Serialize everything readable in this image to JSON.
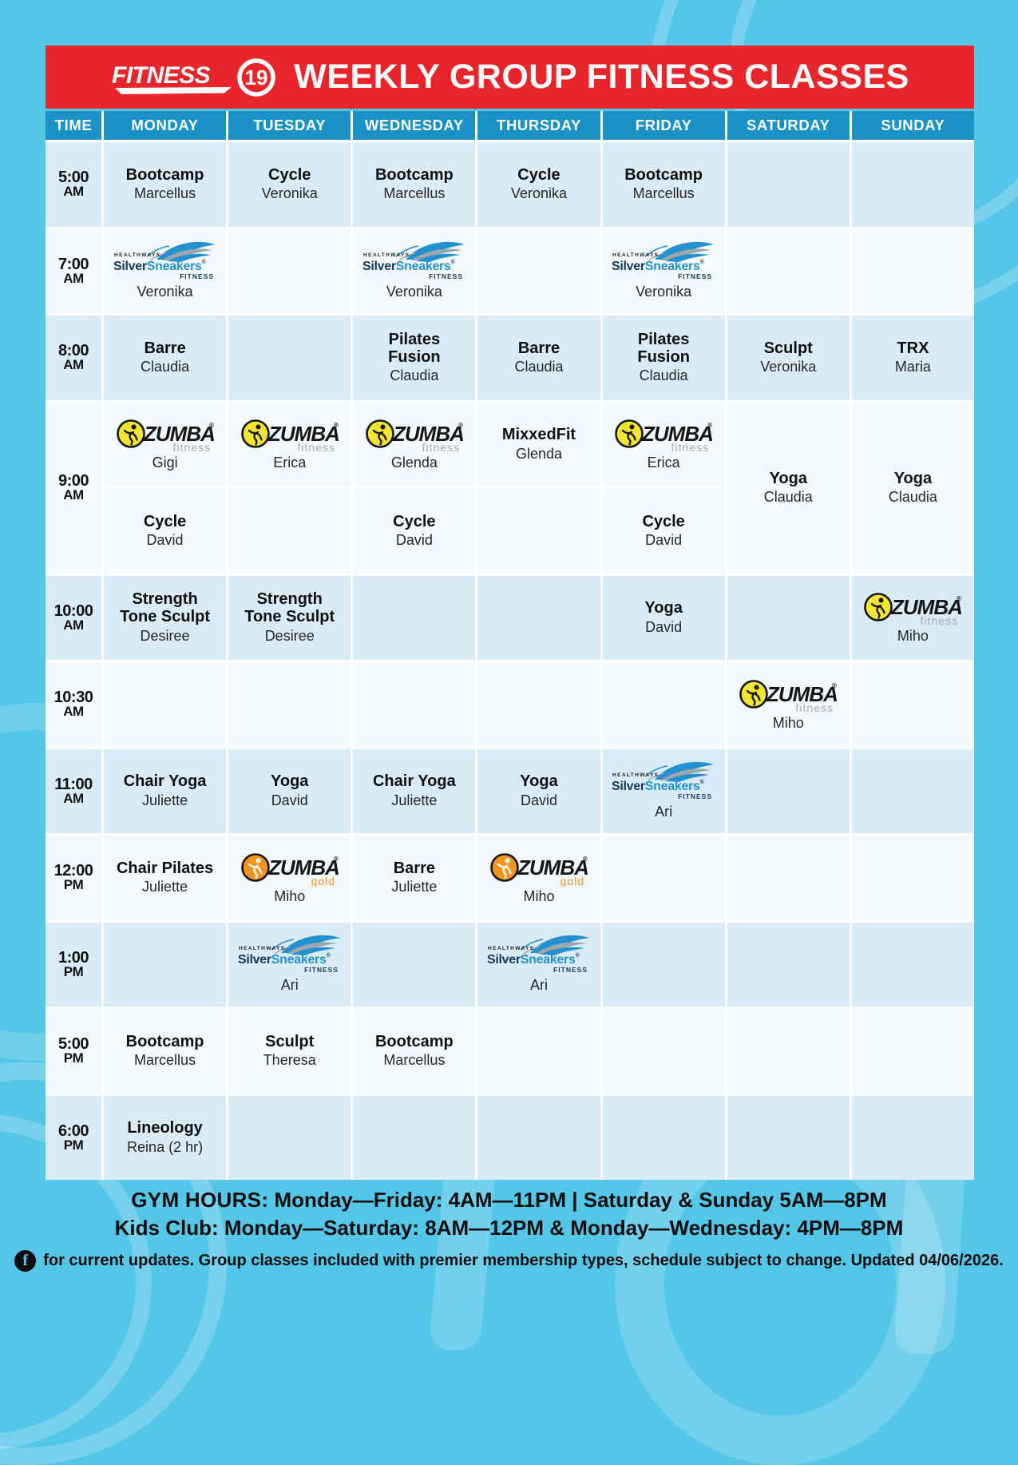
{
  "colors": {
    "page_bg": "#54c6e8",
    "banner_red": "#e8252b",
    "header_blue": "#1b92c6",
    "row_shade": "#d9ebf7",
    "row_light": "#f3f9fd",
    "text_black": "#101010",
    "zumba_yellow": "#f2e430",
    "zumba_gold_orange": "#f6921e",
    "zumba_fitness_gray": "#a7a9ac",
    "silversneakers_navy": "#13395c",
    "silversneakers_blue": "#2391d0",
    "watermark": "rgba(255,255,255,0.2)"
  },
  "header": {
    "brand": "FITNESS",
    "brand_number": "19",
    "title": "WEEKLY GROUP FITNESS CLASSES"
  },
  "columns": [
    "TIME",
    "MONDAY",
    "TUESDAY",
    "WEDNESDAY",
    "THURSDAY",
    "FRIDAY",
    "SATURDAY",
    "SUNDAY"
  ],
  "logos": {
    "zumba_word": "ZUMBA",
    "zumba_reg": "®",
    "zumba_fitness_sub": "fitness",
    "zumba_gold_sub": "gold",
    "ss_healthways": "HEALTHWAYS",
    "ss_silver": "Silver",
    "ss_sneakers": "Sneakers",
    "ss_reg": "®",
    "ss_fitness": "FITNESS"
  },
  "schedule": {
    "rows": [
      {
        "time": "5:00",
        "meridiem": "AM",
        "shade": true,
        "cells": [
          {
            "type": "class",
            "title": "Bootcamp",
            "instructor": "Marcellus"
          },
          {
            "type": "class",
            "title": "Cycle",
            "instructor": "Veronika"
          },
          {
            "type": "class",
            "title": "Bootcamp",
            "instructor": "Marcellus"
          },
          {
            "type": "class",
            "title": "Cycle",
            "instructor": "Veronika"
          },
          {
            "type": "class",
            "title": "Bootcamp",
            "instructor": "Marcellus"
          },
          {
            "type": "empty"
          },
          {
            "type": "empty"
          }
        ]
      },
      {
        "time": "7:00",
        "meridiem": "AM",
        "shade": false,
        "cells": [
          {
            "type": "silversneakers",
            "instructor": "Veronika"
          },
          {
            "type": "empty"
          },
          {
            "type": "silversneakers",
            "instructor": "Veronika"
          },
          {
            "type": "empty"
          },
          {
            "type": "silversneakers",
            "instructor": "Veronika"
          },
          {
            "type": "empty"
          },
          {
            "type": "empty"
          }
        ]
      },
      {
        "time": "8:00",
        "meridiem": "AM",
        "shade": true,
        "cells": [
          {
            "type": "class",
            "title": "Barre",
            "instructor": "Claudia"
          },
          {
            "type": "empty"
          },
          {
            "type": "class",
            "title": "Pilates\nFusion",
            "instructor": "Claudia"
          },
          {
            "type": "class",
            "title": "Barre",
            "instructor": "Claudia"
          },
          {
            "type": "class",
            "title": "Pilates\nFusion",
            "instructor": "Claudia"
          },
          {
            "type": "class",
            "title": "Sculpt",
            "instructor": "Veronika"
          },
          {
            "type": "class",
            "title": "TRX",
            "instructor": "Maria"
          }
        ]
      },
      {
        "time": "9:00",
        "meridiem": "AM",
        "shade": false,
        "subrows": [
          [
            {
              "type": "zumba",
              "variant": "fitness",
              "instructor": "Gigi"
            },
            {
              "type": "zumba",
              "variant": "fitness",
              "instructor": "Erica"
            },
            {
              "type": "zumba",
              "variant": "fitness",
              "instructor": "Glenda"
            },
            {
              "type": "class",
              "title": "MixxedFit",
              "instructor": "Glenda"
            },
            {
              "type": "zumba",
              "variant": "fitness",
              "instructor": "Erica"
            },
            {
              "type": "class",
              "title": "Yoga",
              "instructor": "Claudia",
              "rowspan": 2
            },
            {
              "type": "class",
              "title": "Yoga",
              "instructor": "Claudia",
              "rowspan": 2
            }
          ],
          [
            {
              "type": "class",
              "title": "Cycle",
              "instructor": "David"
            },
            {
              "type": "empty"
            },
            {
              "type": "class",
              "title": "Cycle",
              "instructor": "David"
            },
            {
              "type": "empty"
            },
            {
              "type": "class",
              "title": "Cycle",
              "instructor": "David"
            },
            {
              "type": "skip"
            },
            {
              "type": "skip"
            }
          ]
        ]
      },
      {
        "time": "10:00",
        "meridiem": "AM",
        "shade": true,
        "cells": [
          {
            "type": "class",
            "title": "Strength\nTone Sculpt",
            "instructor": "Desiree"
          },
          {
            "type": "class",
            "title": "Strength\nTone Sculpt",
            "instructor": "Desiree"
          },
          {
            "type": "empty"
          },
          {
            "type": "empty"
          },
          {
            "type": "class",
            "title": "Yoga",
            "instructor": "David"
          },
          {
            "type": "empty"
          },
          {
            "type": "zumba",
            "variant": "fitness",
            "instructor": "Miho"
          }
        ]
      },
      {
        "time": "10:30",
        "meridiem": "AM",
        "shade": false,
        "cells": [
          {
            "type": "empty"
          },
          {
            "type": "empty"
          },
          {
            "type": "empty"
          },
          {
            "type": "empty"
          },
          {
            "type": "empty"
          },
          {
            "type": "zumba",
            "variant": "fitness",
            "instructor": "Miho"
          },
          {
            "type": "empty"
          }
        ]
      },
      {
        "time": "11:00",
        "meridiem": "AM",
        "shade": true,
        "cells": [
          {
            "type": "class",
            "title": "Chair Yoga",
            "instructor": "Juliette"
          },
          {
            "type": "class",
            "title": "Yoga",
            "instructor": "David"
          },
          {
            "type": "class",
            "title": "Chair Yoga",
            "instructor": "Juliette"
          },
          {
            "type": "class",
            "title": "Yoga",
            "instructor": "David"
          },
          {
            "type": "silversneakers",
            "instructor": "Ari"
          },
          {
            "type": "empty"
          },
          {
            "type": "empty"
          }
        ]
      },
      {
        "time": "12:00",
        "meridiem": "PM",
        "shade": false,
        "cells": [
          {
            "type": "class",
            "title": "Chair Pilates",
            "instructor": "Juliette"
          },
          {
            "type": "zumba",
            "variant": "gold",
            "instructor": "Miho"
          },
          {
            "type": "class",
            "title": "Barre",
            "instructor": "Juliette"
          },
          {
            "type": "zumba",
            "variant": "gold",
            "instructor": "Miho"
          },
          {
            "type": "empty"
          },
          {
            "type": "empty"
          },
          {
            "type": "empty"
          }
        ]
      },
      {
        "time": "1:00",
        "meridiem": "PM",
        "shade": true,
        "cells": [
          {
            "type": "empty"
          },
          {
            "type": "silversneakers",
            "instructor": "Ari"
          },
          {
            "type": "empty"
          },
          {
            "type": "silversneakers",
            "instructor": "Ari"
          },
          {
            "type": "empty"
          },
          {
            "type": "empty"
          },
          {
            "type": "empty"
          }
        ]
      },
      {
        "time": "5:00",
        "meridiem": "PM",
        "shade": false,
        "cells": [
          {
            "type": "class",
            "title": "Bootcamp",
            "instructor": "Marcellus"
          },
          {
            "type": "class",
            "title": "Sculpt",
            "instructor": "Theresa"
          },
          {
            "type": "class",
            "title": "Bootcamp",
            "instructor": "Marcellus"
          },
          {
            "type": "empty"
          },
          {
            "type": "empty"
          },
          {
            "type": "empty"
          },
          {
            "type": "empty"
          }
        ]
      },
      {
        "time": "6:00",
        "meridiem": "PM",
        "shade": true,
        "cells": [
          {
            "type": "class",
            "title": "Lineology",
            "instructor": "Reina (2 hr)"
          },
          {
            "type": "empty"
          },
          {
            "type": "empty"
          },
          {
            "type": "empty"
          },
          {
            "type": "empty"
          },
          {
            "type": "empty"
          },
          {
            "type": "empty"
          }
        ]
      }
    ]
  },
  "footer": {
    "gym_hours_label": "GYM HOURS:",
    "gym_hours_text": "Monday—Friday: 4AM—11PM | Saturday & Sunday 5AM—8PM",
    "kids_club_text": "Kids Club: Monday—Saturday: 8AM—12PM & Monday—Wednesday: 4PM—8PM",
    "facebook_icon_letter": "f",
    "updates_text": "for current updates. Group classes included with premier membership types, schedule subject to change. Updated 04/06/2026."
  }
}
